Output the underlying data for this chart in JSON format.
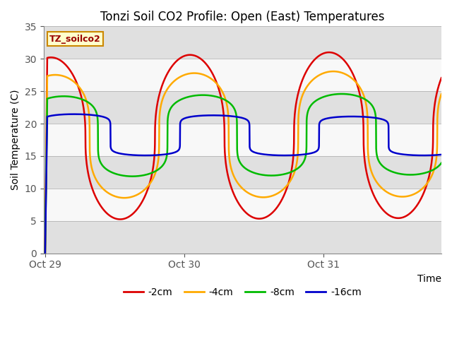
{
  "title": "Tonzi Soil CO2 Profile: Open (East) Temperatures",
  "xlabel": "Time",
  "ylabel": "Soil Temperature (C)",
  "xtick_labels": [
    "Oct 29",
    "Oct 30",
    "Oct 31"
  ],
  "xtick_positions": [
    0.0,
    1.0,
    2.0
  ],
  "ylim": [
    0,
    35
  ],
  "xlim": [
    -0.01,
    2.85
  ],
  "legend_label": "TZ_soilco2",
  "series_keys": [
    "-2cm",
    "-4cm",
    "-8cm",
    "-16cm"
  ],
  "series_colors": {
    "-2cm": "#dd0000",
    "-4cm": "#ffaa00",
    "-8cm": "#00bb00",
    "-16cm": "#0000cc"
  },
  "band_edges": [
    0,
    5,
    10,
    15,
    20,
    25,
    30,
    35
  ],
  "band_colors": [
    "#e0e0e0",
    "#f8f8f8",
    "#e0e0e0",
    "#f8f8f8",
    "#e0e0e0",
    "#f8f8f8",
    "#e0e0e0"
  ]
}
